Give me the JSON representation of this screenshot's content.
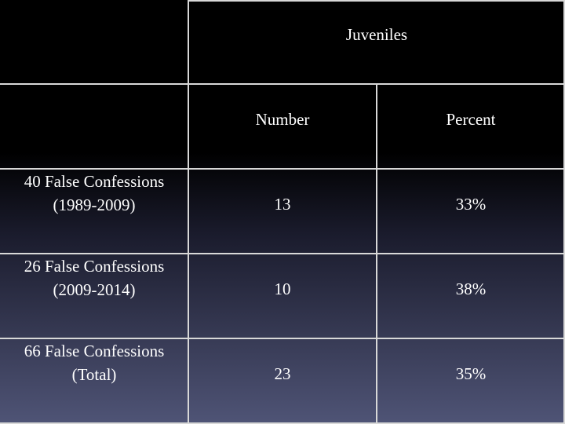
{
  "table": {
    "header": "Juveniles",
    "columns": [
      "Number",
      "Percent"
    ],
    "rows": [
      [
        "40 False Confessions (1989-2009)",
        13,
        "33%"
      ],
      [
        "26 False Confessions (2009-2014)",
        10,
        "38%"
      ],
      [
        "66 False Confessions (Total)",
        23,
        "35%"
      ]
    ]
  }
}
